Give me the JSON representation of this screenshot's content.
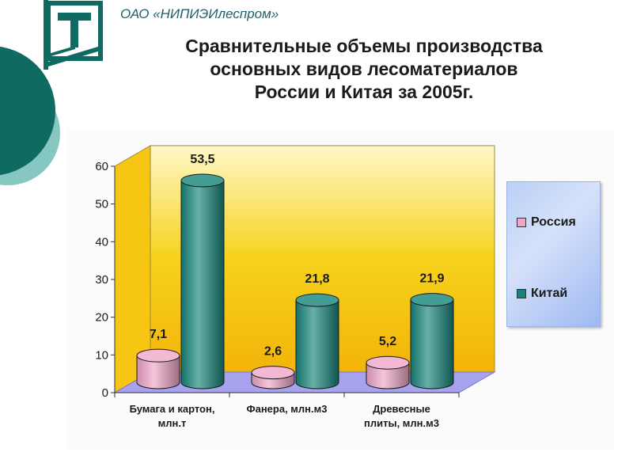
{
  "header": {
    "org": "ОАО «НИПИЭИлеспром»",
    "title_lines": [
      "Сравнительные объемы производства",
      "основных видов лесоматериалов",
      "России и Китая за 2005г."
    ]
  },
  "colors": {
    "russia": "#f0a6c8",
    "china": "#15857a",
    "wall": "#f6d21c",
    "floor": "#a7a2ee",
    "deco_teal": "#0f6b62",
    "deco_light": "#86c7c2"
  },
  "chart_data": {
    "type": "bar",
    "categories": [
      [
        "Бумага и картон,",
        "млн.т"
      ],
      [
        "Фанера, млн.м3"
      ],
      [
        "Древесные",
        "плиты, млн.м3"
      ]
    ],
    "series": [
      {
        "name": "Россия",
        "values": [
          7.1,
          2.6,
          5.2
        ],
        "labels": [
          "7,1",
          "2,6",
          "5,2"
        ]
      },
      {
        "name": "Китай",
        "values": [
          53.5,
          21.8,
          21.9
        ],
        "labels": [
          "53,5",
          "21,8",
          "21,9"
        ]
      }
    ],
    "ylim": [
      0,
      60
    ],
    "yticks": [
      "0",
      "10",
      "20",
      "30",
      "40",
      "50",
      "60"
    ],
    "grid": false,
    "legend": "right",
    "style": "3d-cylinder"
  }
}
